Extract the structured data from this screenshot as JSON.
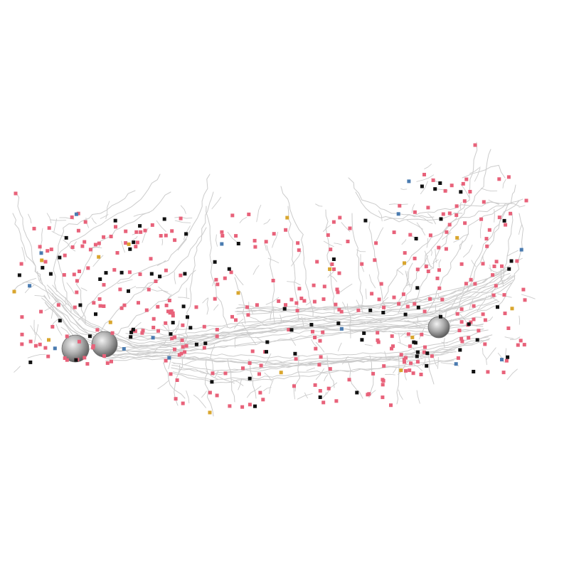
{
  "scene": {
    "background": "#ffffff",
    "neurite_color": "#cccccc",
    "soma_color": "#9a9a9a",
    "marker_colors": {
      "pink": "#e8627a",
      "black": "#111111",
      "blue": "#4a7bb0",
      "yellow": "#d9a62e"
    }
  }
}
